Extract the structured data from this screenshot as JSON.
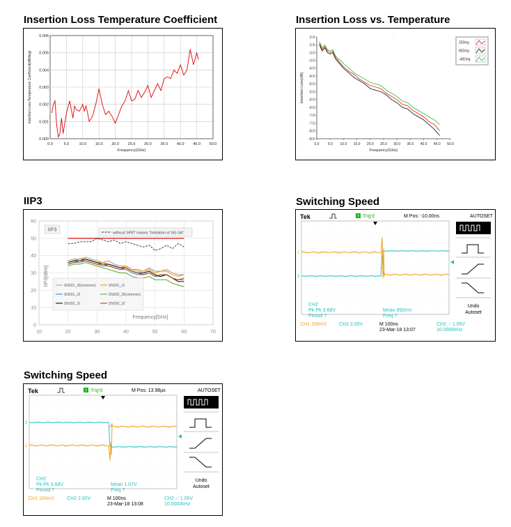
{
  "chart_data": [
    {
      "type": "line",
      "title": "Insertion Loss Temperature Coefficient",
      "xlabel": "Frequency(GHz)",
      "ylabel": "Insertion Loss Temperature Coefficient(dB/deg)",
      "xlim": [
        0,
        50
      ],
      "ylim": [
        0,
        0.006
      ],
      "xticks": [
        "0.0",
        "5.0",
        "10.0",
        "15.0",
        "20.0",
        "25.0",
        "30.0",
        "35.0",
        "40.0",
        "45.0",
        "50.0"
      ],
      "yticks": [
        "0.000",
        "0.001",
        "0.002",
        "0.003",
        "0.004",
        "0.005",
        "0.006"
      ],
      "grid": true,
      "series": [
        {
          "color": "#e00000",
          "x": [
            0.5,
            1.0,
            1.5,
            2.0,
            2.5,
            3.0,
            3.5,
            4.0,
            4.5,
            5.0,
            6.0,
            7.0,
            7.5,
            8.0,
            9.0,
            10.0,
            10.5,
            11.0,
            11.5,
            12.0,
            13.0,
            14.0,
            15.0,
            16.0,
            17.0,
            18.0,
            19.0,
            20.0,
            21.0,
            22.0,
            23.0,
            24.0,
            25.0,
            26.0,
            27.0,
            28.0,
            29.0,
            30.0,
            31.0,
            32.0,
            33.0,
            34.0,
            35.0,
            36.0,
            37.0,
            38.0,
            39.0,
            40.0,
            41.0,
            42.0,
            42.5,
            43.0,
            44.0,
            45.0,
            45.5
          ],
          "y": [
            0.0015,
            0.002,
            0.0022,
            0.0008,
            0.0001,
            0.0003,
            0.0012,
            0.0003,
            0.0009,
            0.0015,
            0.0022,
            0.0012,
            0.0019,
            0.0017,
            0.0016,
            0.002,
            0.0016,
            0.0019,
            0.0015,
            0.001,
            0.0013,
            0.002,
            0.0029,
            0.002,
            0.0014,
            0.0016,
            0.0013,
            0.0009,
            0.0014,
            0.0019,
            0.0022,
            0.0028,
            0.0022,
            0.0023,
            0.0028,
            0.0024,
            0.0027,
            0.0031,
            0.0024,
            0.0028,
            0.0032,
            0.0028,
            0.0035,
            0.0036,
            0.0035,
            0.004,
            0.0038,
            0.0043,
            0.0037,
            0.004,
            0.0046,
            0.0052,
            0.0043,
            0.005,
            0.0046
          ]
        }
      ]
    },
    {
      "type": "line",
      "title": "Insertion Loss vs. Temperature",
      "xlabel": "Frequency(GHz)",
      "ylabel": "Insertion Loss(dB)",
      "xlim": [
        0,
        50
      ],
      "ylim": [
        -8.5,
        -2.0
      ],
      "xticks": [
        "0.0",
        "5.0",
        "10.0",
        "15.0",
        "20.0",
        "25.0",
        "30.0",
        "35.0",
        "40.0",
        "45.0",
        "50.0"
      ],
      "yticks": [
        "-2.0",
        "-2.5",
        "-3.0",
        "-3.5",
        "-4.0",
        "-4.5",
        "-5.0",
        "-5.5",
        "-6.0",
        "-6.5",
        "-7.0",
        "-7.5",
        "-8.0",
        "-8.5"
      ],
      "grid": false,
      "legend": "top-right",
      "x": [
        1,
        2,
        3,
        4,
        5,
        6,
        7,
        8,
        9,
        10,
        12,
        14,
        16,
        18,
        20,
        22,
        24,
        26,
        28,
        30,
        32,
        34,
        36,
        38,
        40,
        42,
        44,
        46
      ],
      "series": [
        {
          "name": "25Deg",
          "color": "#e03030",
          "values": [
            -2.4,
            -2.8,
            -2.6,
            -2.9,
            -3.0,
            -2.9,
            -3.3,
            -3.5,
            -3.7,
            -3.9,
            -4.2,
            -4.4,
            -4.7,
            -4.9,
            -5.1,
            -5.2,
            -5.3,
            -5.6,
            -5.8,
            -6.0,
            -6.3,
            -6.4,
            -6.7,
            -6.9,
            -7.1,
            -7.4,
            -7.6,
            -8.0
          ]
        },
        {
          "name": "85Deg",
          "color": "#222222",
          "values": [
            -2.5,
            -2.9,
            -2.7,
            -3.0,
            -3.1,
            -3.0,
            -3.4,
            -3.6,
            -3.8,
            -4.0,
            -4.3,
            -4.6,
            -4.8,
            -5.0,
            -5.3,
            -5.4,
            -5.5,
            -5.7,
            -6.0,
            -6.2,
            -6.5,
            -6.6,
            -6.9,
            -7.1,
            -7.3,
            -7.6,
            -7.9,
            -8.3
          ]
        },
        {
          "name": "-40Deg",
          "color": "#40c040",
          "values": [
            -2.3,
            -2.7,
            -2.5,
            -2.8,
            -2.9,
            -2.8,
            -3.2,
            -3.4,
            -3.5,
            -3.7,
            -4.0,
            -4.3,
            -4.5,
            -4.7,
            -4.9,
            -5.0,
            -5.1,
            -5.4,
            -5.6,
            -5.8,
            -6.1,
            -6.2,
            -6.5,
            -6.7,
            -6.9,
            -7.1,
            -7.3,
            -7.6
          ]
        }
      ]
    },
    {
      "type": "line",
      "title": "IIP3",
      "panel_label": "IIP3",
      "xlabel": "Frequency[GHz]",
      "ylabel": "IIP3[dBm]",
      "xlim": [
        10,
        70
      ],
      "ylim": [
        0,
        60
      ],
      "xticks": [
        "10",
        "20",
        "30",
        "40",
        "50",
        "60",
        "70"
      ],
      "yticks": [
        "0",
        "10",
        "20",
        "30",
        "40",
        "50",
        "60"
      ],
      "grid": true,
      "x": [
        20,
        22,
        24,
        26,
        28,
        30,
        32,
        34,
        36,
        38,
        40,
        42,
        44,
        46,
        48,
        50,
        52,
        54,
        56,
        58,
        60
      ],
      "limit_line": {
        "y": 50,
        "color": "#e03030"
      },
      "series": [
        {
          "name": "without SP8T means \"limitation of SG-SA\"",
          "color": "#333333",
          "dashed": true,
          "values": [
            47,
            47,
            48,
            48,
            48,
            50,
            49,
            48,
            49,
            47,
            48,
            47,
            46,
            45,
            46,
            43,
            44,
            46,
            44,
            47,
            45
          ]
        },
        {
          "name": "SN201_J0(common)",
          "color": "#aaaaaa",
          "values": [
            37,
            38,
            38,
            39,
            38,
            37,
            36,
            37,
            35,
            34,
            34,
            32,
            32,
            31,
            33,
            31,
            31,
            32,
            30,
            29,
            29
          ]
        },
        {
          "name": "SN201_J1",
          "color": "#f0a020",
          "values": [
            36,
            37,
            38,
            38,
            37,
            36,
            36,
            35,
            34,
            33,
            34,
            32,
            31,
            31,
            32,
            30,
            31,
            31,
            29,
            28,
            29
          ]
        },
        {
          "name": "SN201_J2",
          "color": "#5090e0",
          "values": [
            35,
            36,
            36,
            37,
            36,
            35,
            34,
            34,
            33,
            32,
            32,
            30,
            29,
            29,
            30,
            28,
            28,
            29,
            27,
            26,
            26
          ]
        },
        {
          "name": "SN202_J0(common)",
          "color": "#70b040",
          "values": [
            34,
            35,
            35,
            36,
            35,
            34,
            33,
            32,
            31,
            30,
            30,
            28,
            27,
            27,
            28,
            26,
            26,
            26,
            24,
            23,
            22
          ]
        },
        {
          "name": "SN202_J1",
          "color": "#222222",
          "values": [
            36,
            37,
            37,
            38,
            37,
            36,
            35,
            35,
            34,
            33,
            33,
            31,
            30,
            30,
            31,
            29,
            28,
            29,
            27,
            25,
            25
          ]
        },
        {
          "name": "SN202_J2",
          "color": "#b05020",
          "values": [
            35,
            36,
            37,
            37,
            36,
            35,
            35,
            34,
            33,
            32,
            33,
            31,
            30,
            29,
            30,
            28,
            29,
            29,
            27,
            26,
            27
          ]
        }
      ]
    }
  ],
  "headings": {
    "il_coef": "Insertion Loss Temperature Coefficient",
    "il_temp": "Insertion Loss vs. Temperature",
    "iip3": "IIP3",
    "switch1": "Switching Speed",
    "switch2": "Switching Speed"
  },
  "scopes": [
    {
      "brand": "Tek",
      "trig_icon": "T",
      "trig_status": "Trig'd",
      "mpos": "M Pos: -10.00ns",
      "autoset": "AUTOSET",
      "undo_line1": "Undo",
      "undo_line2": "Autoset",
      "ch1_marker": "1",
      "ch2_marker": "2",
      "meas_ch": "CH2",
      "meas_pkpk": "Pk-Pk 3.68V",
      "meas_period": "Period ?",
      "meas_mean": "Mean 992mV",
      "meas_freq": "Freq ?",
      "ch1_scale": "CH1  100mV",
      "ch2_scale": "CH2  2.00V",
      "time_scale": "M 100ns",
      "date": "23-Mar-18 13:07",
      "trig_level": "CH2 ⟋ 1.05V",
      "trig_freq": "10.0000kHz",
      "ch1_color": "#f0a020",
      "ch2_color": "#20c0c0",
      "edge": "ch2-rise-ch1-fall"
    },
    {
      "brand": "Tek",
      "trig_icon": "T",
      "trig_status": "Trig'd",
      "mpos": "M Pos: 13.98µs",
      "autoset": "AUTOSET",
      "undo_line1": "Undo",
      "undo_line2": "Autoset",
      "ch1_marker": "1",
      "ch2_marker": "2",
      "meas_ch": "CH2",
      "meas_pkpk": "Pk-Pk 3.68V",
      "meas_period": "Period ?",
      "meas_mean": "Mean 1.07V",
      "meas_freq": "Freq ?",
      "ch1_scale": "CH1  100mV",
      "ch2_scale": "CH2  2.00V",
      "time_scale": "M 100ns",
      "date": "23-Mar-18 13:08",
      "trig_level": "CH2 ⟋ 1.05V",
      "trig_freq": "10.0000kHz",
      "ch1_color": "#f0a020",
      "ch2_color": "#20c0c0",
      "edge": "ch2-fall-ch1-rise"
    }
  ]
}
